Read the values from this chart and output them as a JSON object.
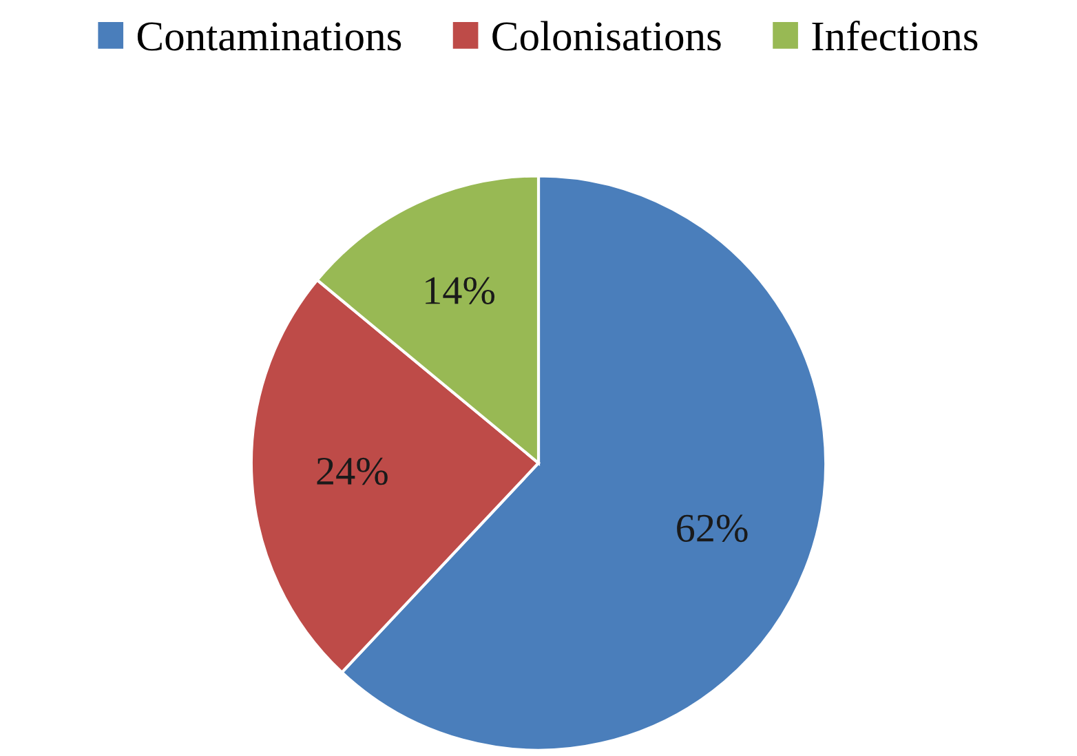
{
  "chart_data": {
    "type": "pie",
    "categories": [
      "Contaminations",
      "Colonisations",
      "Infections"
    ],
    "values": [
      62,
      24,
      14
    ],
    "colors": [
      "#4a7ebb",
      "#be4b48",
      "#98b954"
    ],
    "value_labels": [
      "62%",
      "24%",
      "14%"
    ],
    "legend": "top"
  }
}
